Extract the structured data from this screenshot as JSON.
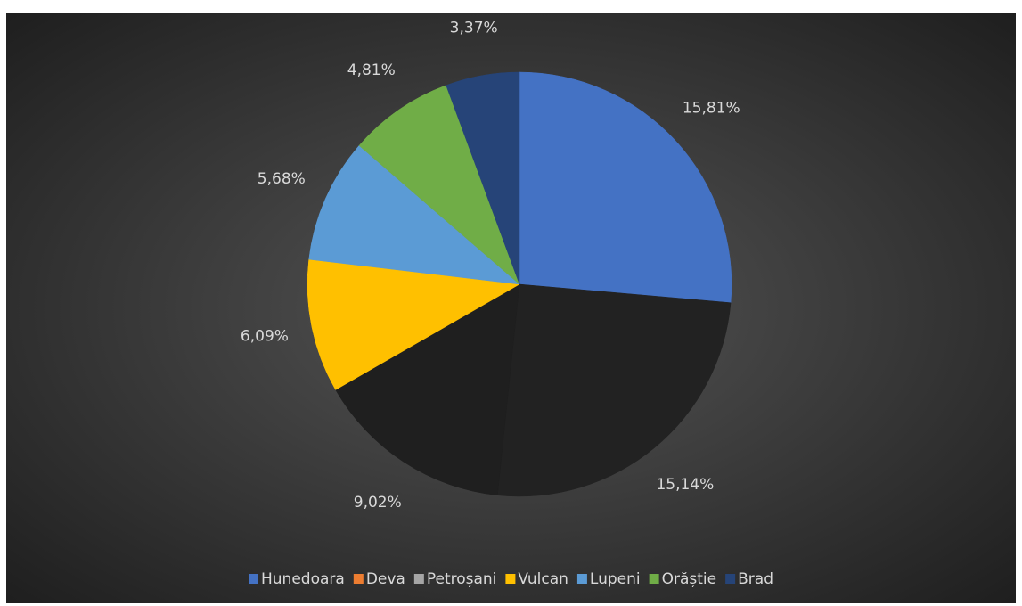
{
  "chart_data": {
    "type": "pie",
    "categories": [
      "Hunedoara",
      "Deva",
      "Petroșani",
      "Vulcan",
      "Lupeni",
      "Orăștie",
      "Brad"
    ],
    "values": [
      15.81,
      15.14,
      9.02,
      6.09,
      5.68,
      4.81,
      3.37
    ],
    "value_labels": [
      "15,81%",
      "15,14%",
      "9,02%",
      "6,09%",
      "5,68%",
      "4,81%",
      "3,37%"
    ],
    "colors": [
      "#4472c4",
      "#ed7d31",
      "#a5a5a5",
      "#ffc000",
      "#5b9bd5",
      "#70ad47",
      "#264478"
    ],
    "slice_colors": [
      "#4472c4",
      "#222222",
      "#1f1f1f",
      "#ffc000",
      "#5b9bd5",
      "#70ad47",
      "#264478"
    ],
    "legend": "bottom"
  }
}
